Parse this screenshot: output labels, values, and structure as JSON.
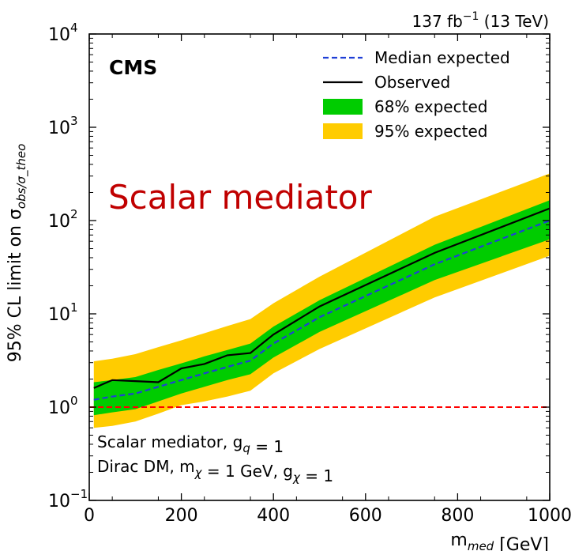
{
  "chart_data": {
    "type": "line",
    "experiment_label": "CMS",
    "luminosity_label": "137 fb⁻¹ (13 TeV)",
    "annotation_title": "Scalar mediator",
    "annotation_line1": "Scalar mediator, g_q = 1",
    "annotation_line2": "Dirac DM, m_χ = 1 GeV, g_χ = 1",
    "xlabel": "m_med [GeV]",
    "ylabel": "95% CL limit on σ_obs/σ_theo",
    "xlim": [
      0,
      1000
    ],
    "ylim": [
      0.1,
      10000
    ],
    "yscale": "log",
    "x_ticks": [
      0,
      200,
      400,
      600,
      800,
      1000
    ],
    "y_ticks": [
      {
        "value": 0.1,
        "base": "10",
        "exp": "−1"
      },
      {
        "value": 1,
        "base": "10",
        "exp": "0"
      },
      {
        "value": 10,
        "base": "10",
        "exp": "1"
      },
      {
        "value": 100,
        "base": "10",
        "exp": "2"
      },
      {
        "value": 1000,
        "base": "10",
        "exp": "3"
      },
      {
        "value": 10000,
        "base": "10",
        "exp": "4"
      }
    ],
    "reference_line": {
      "y": 1,
      "color": "#ff0000",
      "style": "dashed"
    },
    "legend": {
      "position": "top-right",
      "entries": [
        {
          "label": "Median expected",
          "kind": "dashed-line",
          "color": "#1f3fd6"
        },
        {
          "label": "Observed",
          "kind": "line",
          "color": "#000000"
        },
        {
          "label": "68% expected",
          "kind": "band",
          "color": "#00cc00"
        },
        {
          "label": "95% expected",
          "kind": "band",
          "color": "#ffcc00"
        }
      ]
    },
    "x": [
      10,
      50,
      100,
      150,
      200,
      250,
      300,
      350,
      400,
      500,
      750,
      1000
    ],
    "series": [
      {
        "name": "95% expected",
        "kind": "band",
        "color": "#ffcc00",
        "lower": [
          0.6,
          0.63,
          0.7,
          0.85,
          1.05,
          1.15,
          1.3,
          1.5,
          2.3,
          4.2,
          15,
          42
        ],
        "upper": [
          3.1,
          3.3,
          3.7,
          4.4,
          5.2,
          6.2,
          7.4,
          8.8,
          13,
          25,
          110,
          320
        ]
      },
      {
        "name": "68% expected",
        "kind": "band",
        "color": "#00cc00",
        "lower": [
          0.82,
          0.88,
          0.95,
          1.15,
          1.4,
          1.65,
          1.95,
          2.25,
          3.4,
          6.4,
          23,
          63
        ]
      },
      {
        "name": "68% expected upper",
        "kind": "band-edge",
        "values": [
          1.85,
          1.95,
          2.1,
          2.5,
          2.95,
          3.5,
          4.1,
          4.8,
          7.3,
          14,
          55,
          165
        ]
      },
      {
        "name": "Median expected",
        "kind": "dashed-line",
        "color": "#1f3fd6",
        "values": [
          1.2,
          1.3,
          1.4,
          1.65,
          1.95,
          2.3,
          2.7,
          3.15,
          4.8,
          9.2,
          34,
          100
        ]
      },
      {
        "name": "Observed",
        "kind": "line",
        "color": "#000000",
        "values": [
          1.6,
          1.95,
          1.9,
          1.85,
          2.6,
          2.9,
          3.6,
          3.8,
          6.0,
          12,
          45,
          135
        ]
      }
    ]
  }
}
